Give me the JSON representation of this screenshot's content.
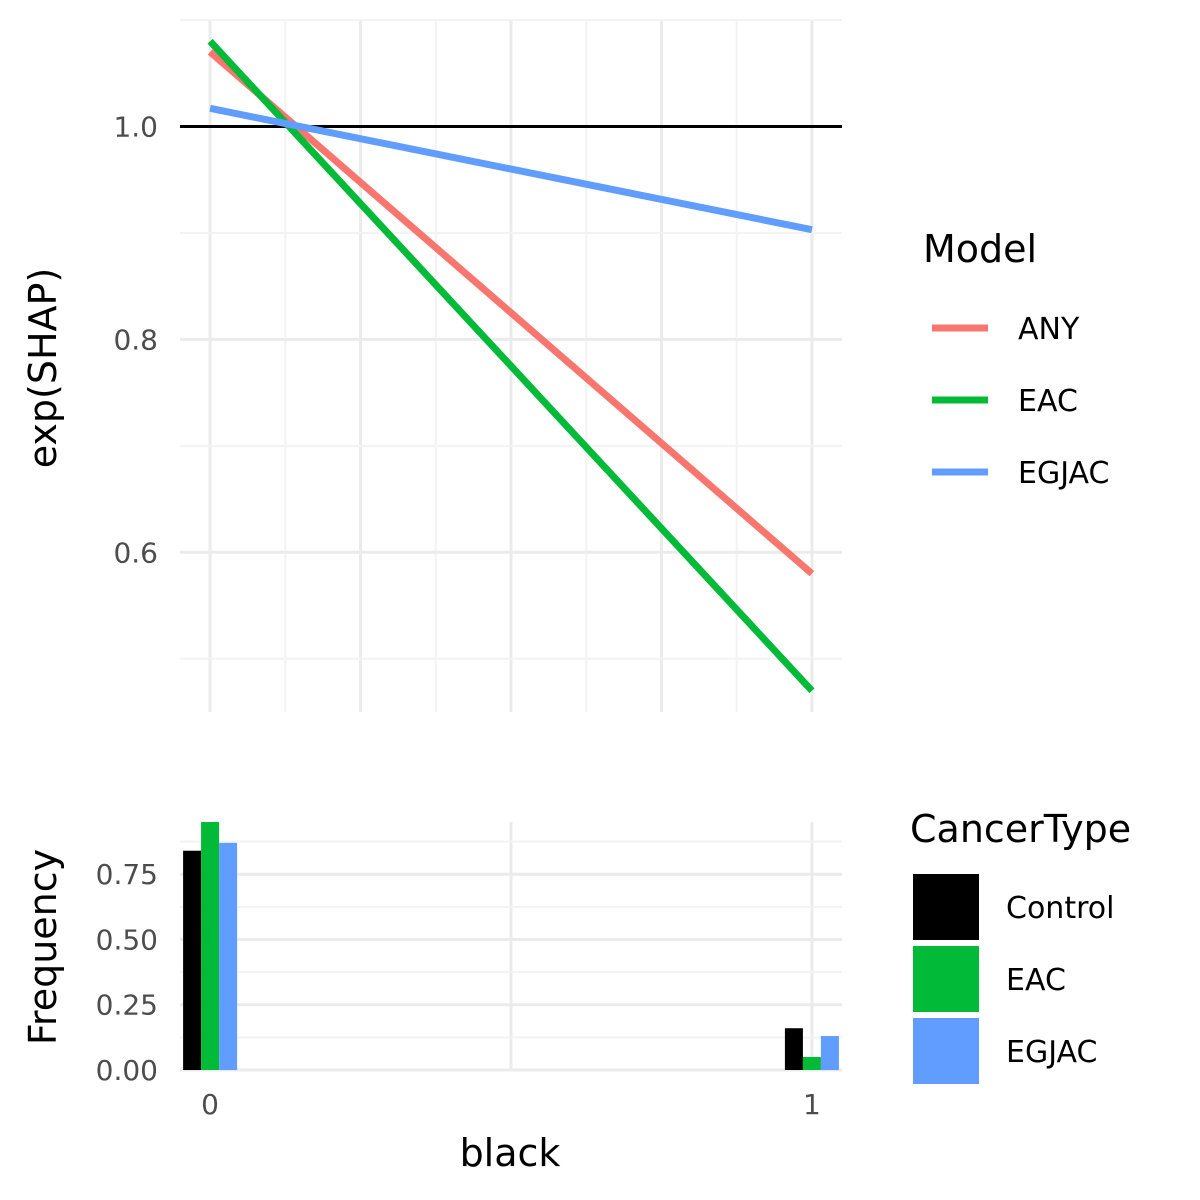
{
  "chart_data": [
    {
      "type": "line",
      "title": "",
      "xlabel": "",
      "ylabel": "exp(SHAP)",
      "xlim": [
        -0.05,
        1.05
      ],
      "ylim": [
        0.45,
        1.1
      ],
      "yticks": [
        0.6,
        0.8,
        1.0
      ],
      "ytick_labels": [
        "0.6",
        "0.8",
        "1.0"
      ],
      "reference_line": {
        "y": 1.0,
        "color": "#000000"
      },
      "grid": true,
      "legend": {
        "title": "Model",
        "placement": "right"
      },
      "series": [
        {
          "name": "ANY",
          "color": "#F8766D",
          "x": [
            0,
            1
          ],
          "y": [
            1.07,
            0.58
          ]
        },
        {
          "name": "EAC",
          "color": "#00BA38",
          "x": [
            0,
            1
          ],
          "y": [
            1.08,
            0.47
          ]
        },
        {
          "name": "EGJAC",
          "color": "#619CFF",
          "x": [
            0,
            1
          ],
          "y": [
            1.017,
            0.903
          ]
        }
      ]
    },
    {
      "type": "bar",
      "title": "",
      "xlabel": "black",
      "ylabel": "Frequency",
      "categories": [
        "0",
        "1"
      ],
      "ylim": [
        0,
        0.95
      ],
      "yticks": [
        0,
        0.25,
        0.5,
        0.75
      ],
      "ytick_labels": [
        "0.00",
        "0.25",
        "0.50",
        "0.75"
      ],
      "xticks": [
        0,
        1
      ],
      "xtick_labels": [
        "0",
        "1"
      ],
      "grid": true,
      "legend": {
        "title": "CancerType",
        "placement": "right"
      },
      "series": [
        {
          "name": "Control",
          "color": "#000000",
          "values": [
            0.84,
            0.16
          ]
        },
        {
          "name": "EAC",
          "color": "#00BA38",
          "values": [
            0.95,
            0.05
          ]
        },
        {
          "name": "EGJAC",
          "color": "#619CFF",
          "values": [
            0.87,
            0.13
          ]
        }
      ]
    }
  ]
}
